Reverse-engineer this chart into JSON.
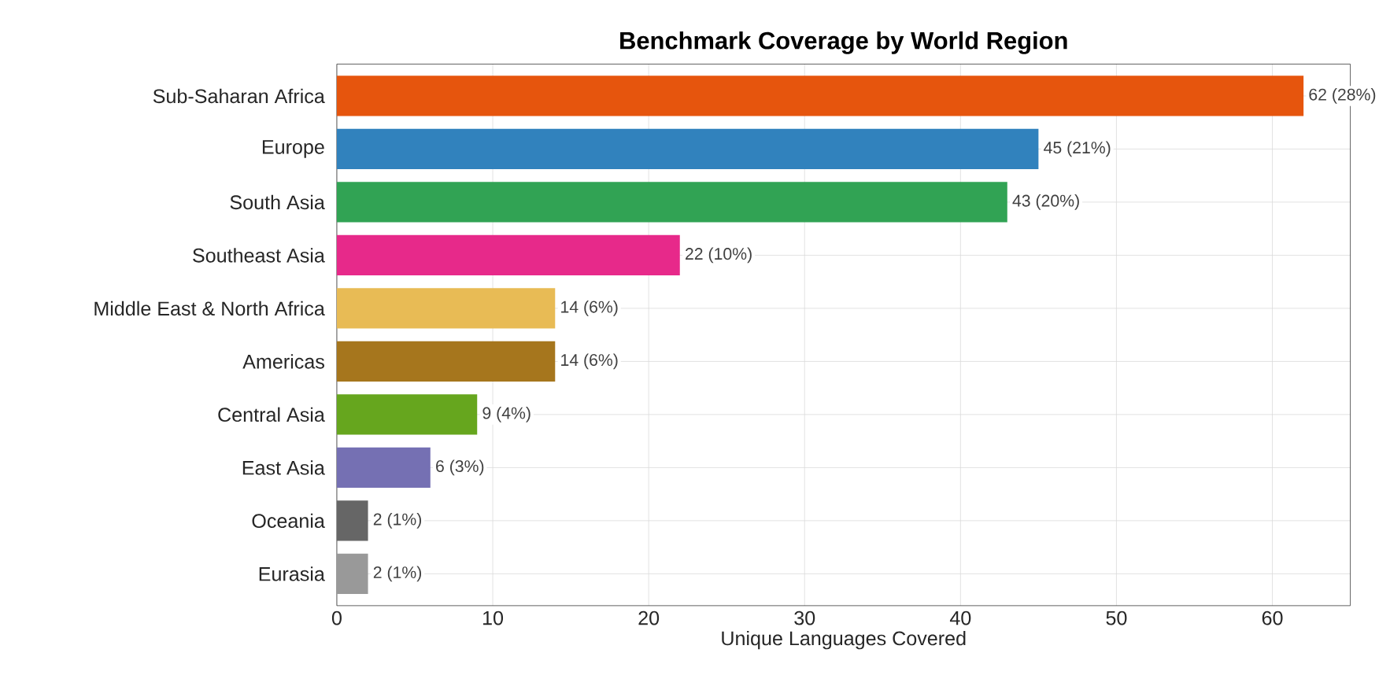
{
  "chart_data": {
    "type": "bar",
    "orientation": "horizontal",
    "title": "Benchmark Coverage by World Region",
    "xlabel": "Unique Languages Covered",
    "categories": [
      "Sub-Saharan Africa",
      "Europe",
      "South Asia",
      "Southeast Asia",
      "Middle East & North Africa",
      "Americas",
      "Central Asia",
      "East Asia",
      "Oceania",
      "Eurasia"
    ],
    "values": [
      62,
      45,
      43,
      22,
      14,
      14,
      9,
      6,
      2,
      2
    ],
    "value_labels": [
      "62  (28%)",
      "45  (21%)",
      "43  (20%)",
      "22  (10%)",
      "14  (6%)",
      "14  (6%)",
      "9  (4%)",
      "6  (3%)",
      "2  (1%)",
      "2  (1%)"
    ],
    "colors": [
      "#e6550d",
      "#3182bd",
      "#31a354",
      "#e7298a",
      "#e8bb55",
      "#a6761d",
      "#66a61e",
      "#7570b3",
      "#666666",
      "#999999"
    ],
    "xlim": [
      0,
      65
    ],
    "xticks": [
      0,
      10,
      20,
      30,
      40,
      50,
      60
    ],
    "grid": true
  }
}
